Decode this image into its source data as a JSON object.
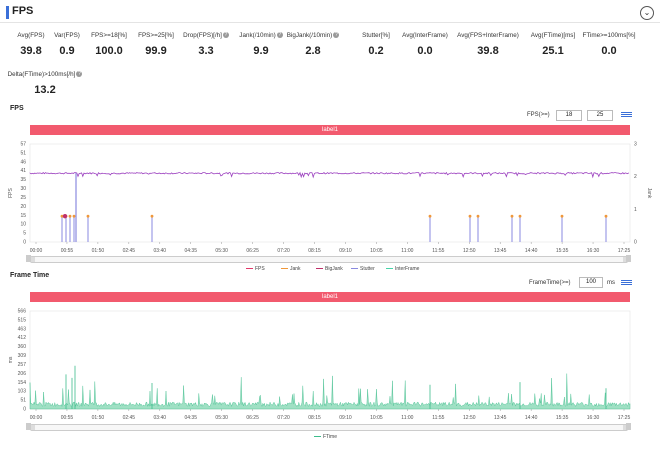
{
  "header": {
    "title": "FPS",
    "collapse_icon": "chevron-down-icon"
  },
  "metrics": [
    {
      "label": "Avg(FPS)",
      "value": "39.8",
      "help": false
    },
    {
      "label": "Var(FPS)",
      "value": "0.9",
      "help": false
    },
    {
      "label": "FPS>=18[%]",
      "value": "100.0",
      "help": false
    },
    {
      "label": "FPS>=25[%]",
      "value": "99.9",
      "help": false
    },
    {
      "label": "Drop(FPS)[/h]",
      "value": "3.3",
      "help": true
    },
    {
      "label": "Jank(/10min)",
      "value": "9.9",
      "help": true
    },
    {
      "label": "BigJank(/10min)",
      "value": "2.8",
      "help": true
    },
    {
      "label": "Stutter[%]",
      "value": "0.2",
      "help": false
    },
    {
      "label": "Avg(InterFrame)",
      "value": "0.0",
      "help": false
    },
    {
      "label": "Avg(FPS+InterFrame)",
      "value": "39.8",
      "help": false
    },
    {
      "label": "Avg(FTime)[ms]",
      "value": "25.1",
      "help": false
    },
    {
      "label": "FTime>=100ms[%]",
      "value": "0.0",
      "help": false
    },
    {
      "label": "Delta(FTime)>100ms[/h]",
      "value": "13.2",
      "help": true
    }
  ],
  "fps_chart": {
    "section_title": "FPS",
    "filter_label": "FPS(>=)",
    "filter_values": [
      "18",
      "25"
    ],
    "band_label": "label1",
    "y_left_label": "FPS",
    "y_right_label": "Jank",
    "y_left_ticks": [
      "57",
      "51",
      "46",
      "41",
      "35",
      "30",
      "25",
      "20",
      "15",
      "10",
      "5",
      "0"
    ],
    "y_right_ticks": [
      "3",
      "2",
      "1",
      "0"
    ],
    "x_ticks": [
      "00:00",
      "00:55",
      "01:50",
      "02:45",
      "03:40",
      "04:35",
      "05:30",
      "06:25",
      "07:20",
      "08:15",
      "09:10",
      "10:05",
      "11:00",
      "11:55",
      "12:50",
      "13:45",
      "14:40",
      "15:35",
      "16:30",
      "17:25"
    ],
    "legend": [
      {
        "name": "FPS",
        "color": "#e2386a"
      },
      {
        "name": "Jank",
        "color": "#f0983a"
      },
      {
        "name": "BigJank",
        "color": "#c0306a"
      },
      {
        "name": "Stutter",
        "color": "#8a8ae0"
      },
      {
        "name": "InterFrame",
        "color": "#46d4a8"
      }
    ]
  },
  "frametime_chart": {
    "section_title": "Frame Time",
    "filter_label": "FrameTime(>=)",
    "filter_value": "100",
    "filter_unit": "ms",
    "band_label": "label1",
    "y_label": "ms",
    "y_ticks": [
      "566",
      "515",
      "463",
      "412",
      "360",
      "309",
      "257",
      "206",
      "154",
      "103",
      "51",
      "0"
    ],
    "x_ticks": [
      "00:00",
      "00:55",
      "01:50",
      "02:45",
      "03:40",
      "04:35",
      "05:30",
      "06:25",
      "07:20",
      "08:15",
      "09:10",
      "10:05",
      "11:00",
      "11:55",
      "12:50",
      "13:45",
      "14:40",
      "15:35",
      "16:30",
      "17:25"
    ],
    "legend": [
      {
        "name": "FTime",
        "color": "#3dbd8c"
      }
    ]
  },
  "colors": {
    "accent": "#3a6fd8",
    "band": "#f25a6e",
    "fps_line": "#9b3fbf",
    "ftime": "#3dbd8c"
  }
}
